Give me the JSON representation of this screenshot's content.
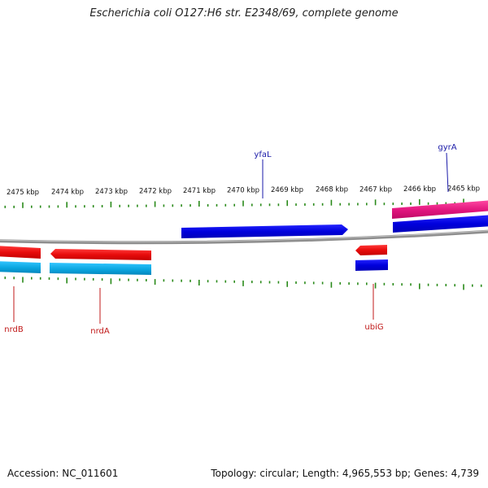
{
  "title": "Escherichia coli O127:H6 str. E2348/69, complete genome",
  "accession_text": "Accession: NC_011601",
  "summary_text": "Topology: circular; Length: 4,965,553 bp; Genes: 4,739",
  "colors": {
    "backbone": "#8a8a8a",
    "tick": "#2a8a1a",
    "forward_gene": "#0000ee",
    "forward_cds": "#e0157d",
    "reverse_gene": "#ee1111",
    "reverse_cds": "#0099cc",
    "forward_label": "#1a1aa8",
    "reverse_label": "#c01818"
  },
  "scale_labels": [
    "2475 kbp",
    "2474 kbp",
    "2473 kbp",
    "2472 kbp",
    "2471 kbp",
    "2470 kbp",
    "2469 kbp",
    "2468 kbp",
    "2467 kbp",
    "2466 kbp",
    "2465 kbp"
  ],
  "gene_labels": {
    "yfaL": "yfaL",
    "gyrA": "gyrA",
    "nrdB": "nrdB",
    "nrdA": "nrdA",
    "ubiG": "ubiG"
  }
}
